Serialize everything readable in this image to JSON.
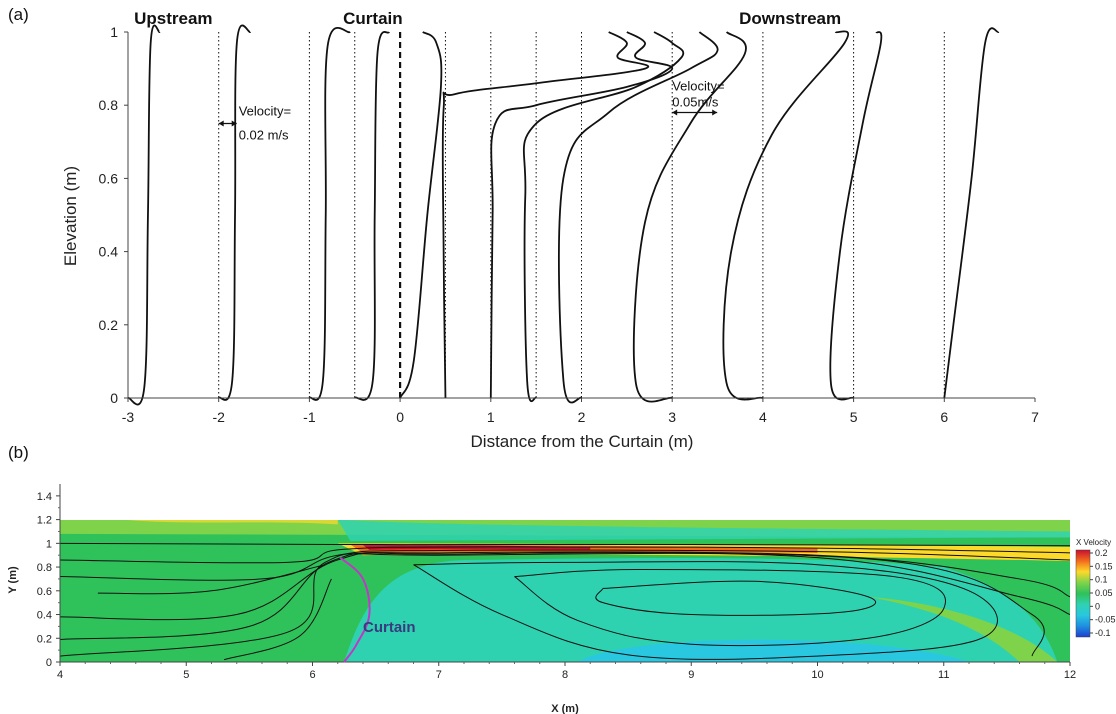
{
  "chart_data": [
    {
      "panel": "(a)",
      "type": "line",
      "xlabel": "Distance from the Curtain (m)",
      "ylabel": "Elevation (m)",
      "xlim": [
        -3,
        7
      ],
      "ylim": [
        0,
        1
      ],
      "xticks": [
        -3,
        -2,
        -1,
        0,
        1,
        2,
        3,
        4,
        5,
        6,
        7
      ],
      "yticks": [
        0,
        0.2,
        0.4,
        0.6,
        0.8,
        1
      ],
      "grid": "vertical dotted reference lines at each measurement station",
      "curtain_position": 0,
      "stations": [
        -3,
        -2,
        -1,
        -0.5,
        0,
        0.5,
        1,
        1.5,
        2,
        3,
        4,
        5,
        6
      ],
      "regions": [
        {
          "label": "Upstream",
          "x": -2.5
        },
        {
          "label": "Curtain",
          "x": -0.3
        },
        {
          "label": "Downstream",
          "x": 4.3
        }
      ],
      "annotations": [
        {
          "line1": "Velocity=",
          "line2": "0.02 m/s",
          "x": -2,
          "y": 0.75
        },
        {
          "line1": "Velocity=",
          "line2": "0.05m/s",
          "x": 3,
          "y": 0.78
        }
      ],
      "profiles": [
        {
          "station": -3,
          "points": [
            [
              -3,
              0
            ],
            [
              -2.82,
              0.03
            ],
            [
              -2.78,
              0.5
            ],
            [
              -2.75,
              0.97
            ],
            [
              -2.65,
              1
            ]
          ]
        },
        {
          "station": -2,
          "points": [
            [
              -2,
              0
            ],
            [
              -1.85,
              0.05
            ],
            [
              -1.82,
              0.5
            ],
            [
              -1.8,
              0.97
            ],
            [
              -1.65,
              1
            ]
          ]
        },
        {
          "station": -1,
          "points": [
            [
              -1,
              0
            ],
            [
              -0.85,
              0.05
            ],
            [
              -0.82,
              0.5
            ],
            [
              -0.8,
              0.96
            ],
            [
              -0.55,
              1
            ]
          ]
        },
        {
          "station": -0.5,
          "points": [
            [
              -0.5,
              0
            ],
            [
              -0.3,
              0.05
            ],
            [
              -0.28,
              0.5
            ],
            [
              -0.25,
              0.94
            ],
            [
              -0.12,
              1
            ]
          ]
        },
        {
          "station": 0,
          "points": [
            [
              0,
              0
            ],
            [
              0.15,
              0.1
            ],
            [
              0.3,
              0.5
            ],
            [
              0.45,
              0.85
            ],
            [
              0.4,
              0.97
            ],
            [
              0.25,
              1
            ]
          ]
        },
        {
          "station": 0.5,
          "points": [
            [
              0.5,
              0
            ],
            [
              0.48,
              0.4
            ],
            [
              0.48,
              0.79
            ],
            [
              0.6,
              0.83
            ],
            [
              1.5,
              0.86
            ],
            [
              2.7,
              0.9
            ],
            [
              2.4,
              0.93
            ],
            [
              2.5,
              0.97
            ],
            [
              2.3,
              1
            ]
          ]
        },
        {
          "station": 1,
          "points": [
            [
              1,
              0
            ],
            [
              1.02,
              0.5
            ],
            [
              1.05,
              0.75
            ],
            [
              1.5,
              0.8
            ],
            [
              2.5,
              0.85
            ],
            [
              3.0,
              0.9
            ],
            [
              2.6,
              0.93
            ],
            [
              2.7,
              0.97
            ],
            [
              2.5,
              1
            ]
          ]
        },
        {
          "station": 1.5,
          "points": [
            [
              1.5,
              0
            ],
            [
              1.4,
              0.05
            ],
            [
              1.38,
              0.55
            ],
            [
              1.5,
              0.75
            ],
            [
              2.6,
              0.85
            ],
            [
              3.1,
              0.93
            ],
            [
              3.0,
              0.97
            ],
            [
              2.8,
              1
            ]
          ]
        },
        {
          "station": 2,
          "points": [
            [
              2,
              0
            ],
            [
              1.8,
              0.05
            ],
            [
              1.8,
              0.6
            ],
            [
              2.3,
              0.78
            ],
            [
              3.2,
              0.9
            ],
            [
              3.5,
              0.95
            ],
            [
              3.3,
              1
            ]
          ]
        },
        {
          "station": 3,
          "points": [
            [
              3,
              0
            ],
            [
              2.6,
              0.04
            ],
            [
              2.7,
              0.48
            ],
            [
              3.2,
              0.75
            ],
            [
              3.8,
              0.94
            ],
            [
              3.6,
              1
            ]
          ]
        },
        {
          "station": 4,
          "points": [
            [
              4,
              0
            ],
            [
              3.6,
              0.04
            ],
            [
              3.65,
              0.4
            ],
            [
              4.1,
              0.72
            ],
            [
              4.9,
              0.97
            ],
            [
              4.8,
              1
            ]
          ]
        },
        {
          "station": 5,
          "points": [
            [
              5,
              0
            ],
            [
              4.75,
              0.04
            ],
            [
              4.85,
              0.4
            ],
            [
              5.1,
              0.75
            ],
            [
              5.3,
              0.97
            ],
            [
              5.25,
              1
            ]
          ]
        },
        {
          "station": 6,
          "points": [
            [
              6,
              0
            ],
            [
              6.1,
              0.2
            ],
            [
              6.3,
              0.6
            ],
            [
              6.45,
              0.97
            ],
            [
              6.6,
              1
            ]
          ]
        }
      ]
    },
    {
      "panel": "(b)",
      "type": "heatmap",
      "xlabel": "X (m)",
      "ylabel": "Y (m)",
      "xlim": [
        4,
        12
      ],
      "ylim": [
        0,
        1.5
      ],
      "xticks": [
        4,
        5,
        6,
        7,
        8,
        9,
        10,
        11,
        12
      ],
      "yticks": [
        0,
        0.2,
        0.4,
        0.6,
        0.8,
        1,
        1.2,
        1.4
      ],
      "colorbar": {
        "title": "X Velocity",
        "ticks": [
          "0.2",
          "0.15",
          "0.1",
          "0.05",
          "0",
          "-0.05",
          "-0.1"
        ],
        "colors": [
          "#c8102e",
          "#f26b1d",
          "#fdd92a",
          "#7fd34a",
          "#2fc15a",
          "#2fd2b0",
          "#29c7e0",
          "#1f8fe0",
          "#1c3fd1"
        ]
      },
      "curtain_label": "Curtain",
      "curtain_color": "#c038c8"
    }
  ]
}
